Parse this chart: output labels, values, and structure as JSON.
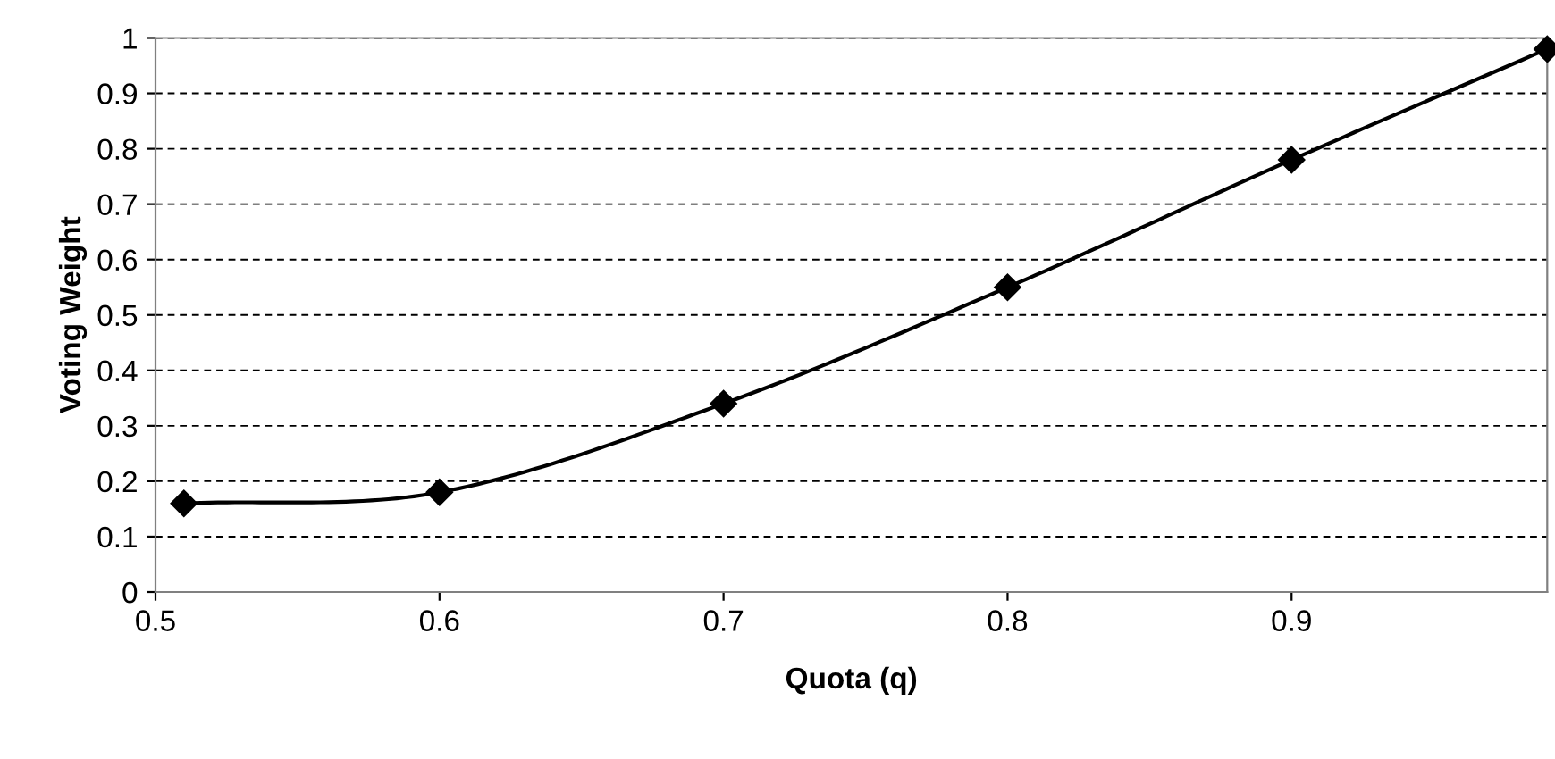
{
  "chart_data": {
    "type": "line",
    "xlabel": "Quota (q)",
    "ylabel": "Voting Weight",
    "x": [
      0.51,
      0.6,
      0.7,
      0.8,
      0.9,
      0.99
    ],
    "series": [
      {
        "color": "#000000",
        "values": [
          0.16,
          0.18,
          0.34,
          0.55,
          0.78,
          0.98
        ]
      }
    ],
    "xlim": [
      0.5,
      0.99
    ],
    "xticks": [
      0.5,
      0.6,
      0.7,
      0.8,
      0.9
    ],
    "ylim": [
      0,
      1
    ],
    "yticks": [
      0,
      0.1,
      0.2,
      0.3,
      0.4,
      0.5,
      0.6,
      0.7,
      0.8,
      0.9,
      1
    ],
    "grid": "y",
    "marker": "diamond",
    "line_style": "solid"
  }
}
